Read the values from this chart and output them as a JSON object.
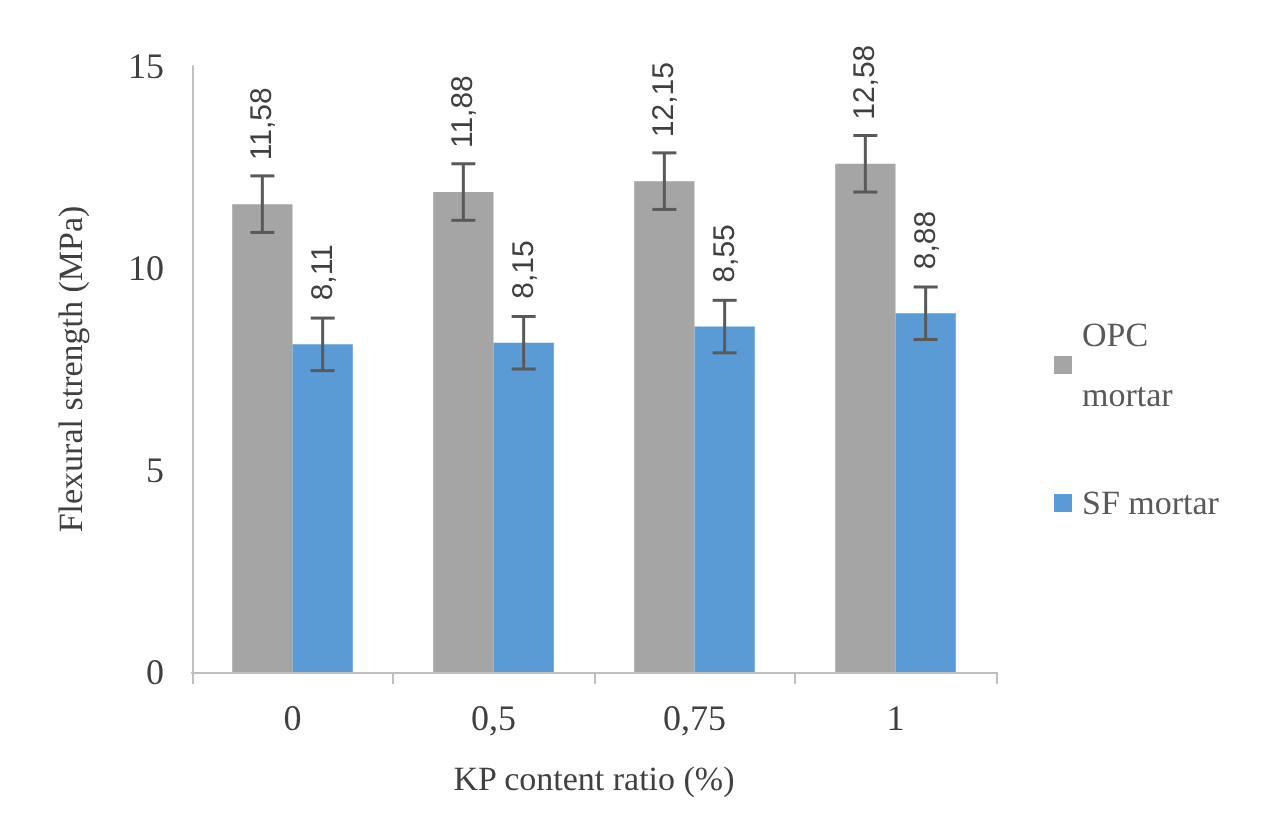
{
  "chart_data": {
    "type": "bar",
    "xlabel": "KP content ratio (%)",
    "ylabel": "Flexural strength (MPa)",
    "categories": [
      "0",
      "0,5",
      "0,75",
      "1"
    ],
    "series": [
      {
        "name": "OPC mortar",
        "color": "#a5a5a5",
        "values": [
          11.58,
          11.88,
          12.15,
          12.58
        ],
        "errors": [
          0.7,
          0.7,
          0.7,
          0.7
        ],
        "value_labels": [
          "11,58",
          "11,88",
          "12,15",
          "12,58"
        ]
      },
      {
        "name": "SF mortar",
        "color": "#5b9bd5",
        "values": [
          8.11,
          8.15,
          8.55,
          8.88
        ],
        "errors": [
          0.65,
          0.65,
          0.65,
          0.65
        ],
        "value_labels": [
          "8,11",
          "8,15",
          "8,55",
          "8,88"
        ]
      }
    ],
    "ylim": [
      0,
      15
    ],
    "yticks": [
      0,
      5,
      10,
      15
    ],
    "grid": false,
    "legend": "right"
  }
}
